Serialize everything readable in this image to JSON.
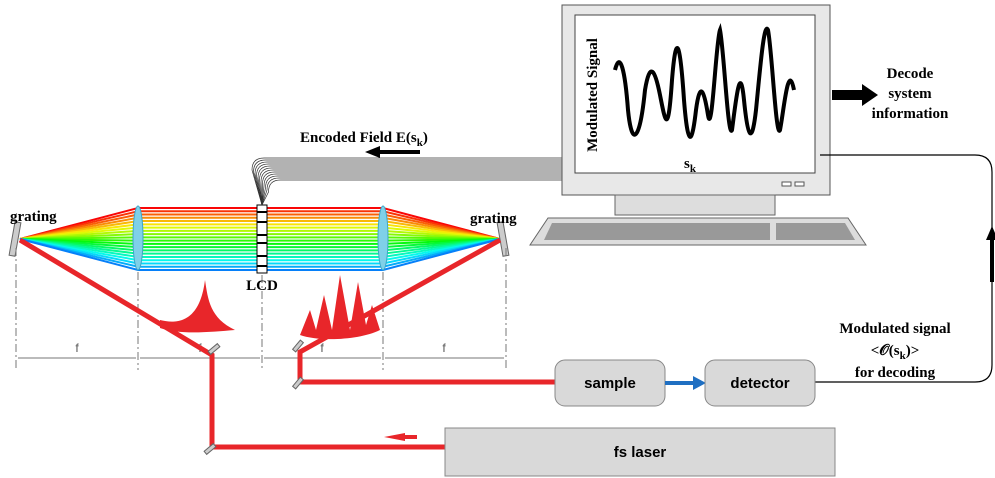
{
  "labels": {
    "grating_left": "grating",
    "grating_right": "grating",
    "lcd": "LCD"
  },
  "encoded_field": {
    "main": "Encoded Field E(s",
    "sub": "k",
    "end": ")"
  },
  "monitor": {
    "y_label": "Modulated Signal",
    "x_label": {
      "main": "s",
      "sub": "k"
    }
  },
  "decode": [
    "Decode",
    "system",
    "information"
  ],
  "focal": [
    "f",
    "f",
    "f",
    "f"
  ],
  "boxes": {
    "sample": "sample",
    "detector": "detector",
    "laser": "fs laser"
  },
  "modulated": {
    "line1": "Modulated signal",
    "line2": {
      "main": "<𝒪(s",
      "sub": "k",
      "end": ")>"
    },
    "line3": "for decoding"
  }
}
